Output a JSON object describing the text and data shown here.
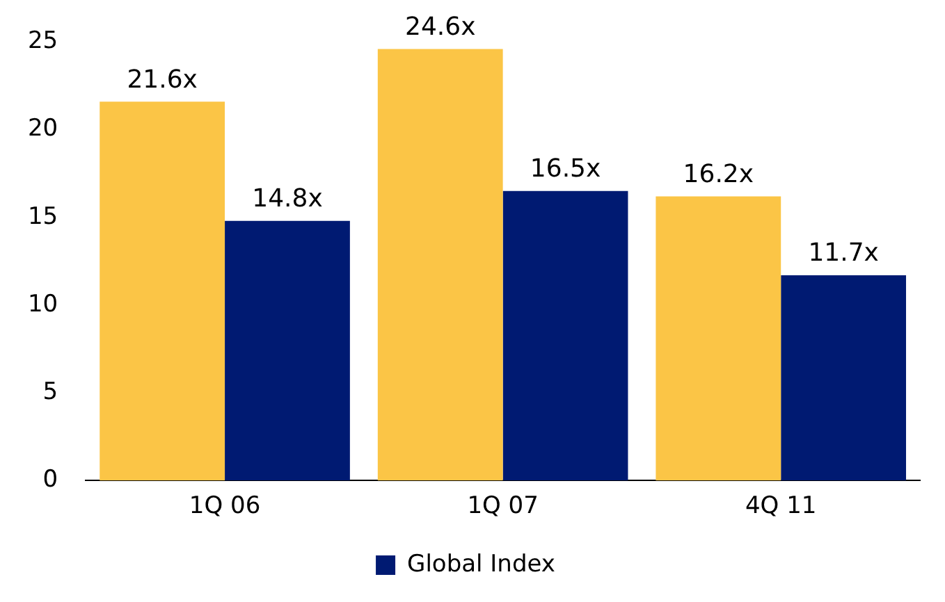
{
  "chart_data": {
    "type": "bar",
    "categories": [
      "1Q 06",
      "1Q 07",
      "4Q 11"
    ],
    "series": [
      {
        "color": "#fbc546",
        "values": [
          21.6,
          24.6,
          16.2
        ],
        "value_labels": [
          "21.6x",
          "24.6x",
          "16.2x"
        ]
      },
      {
        "name": "Global Index",
        "color": "#001a72",
        "values": [
          14.8,
          16.5,
          11.7
        ],
        "value_labels": [
          "14.8x",
          "16.5x",
          "11.7x"
        ]
      }
    ],
    "ylim": [
      0,
      25
    ],
    "yticks": [
      0,
      5,
      10,
      15,
      20,
      25
    ],
    "grid": false,
    "legend": "bottom"
  }
}
